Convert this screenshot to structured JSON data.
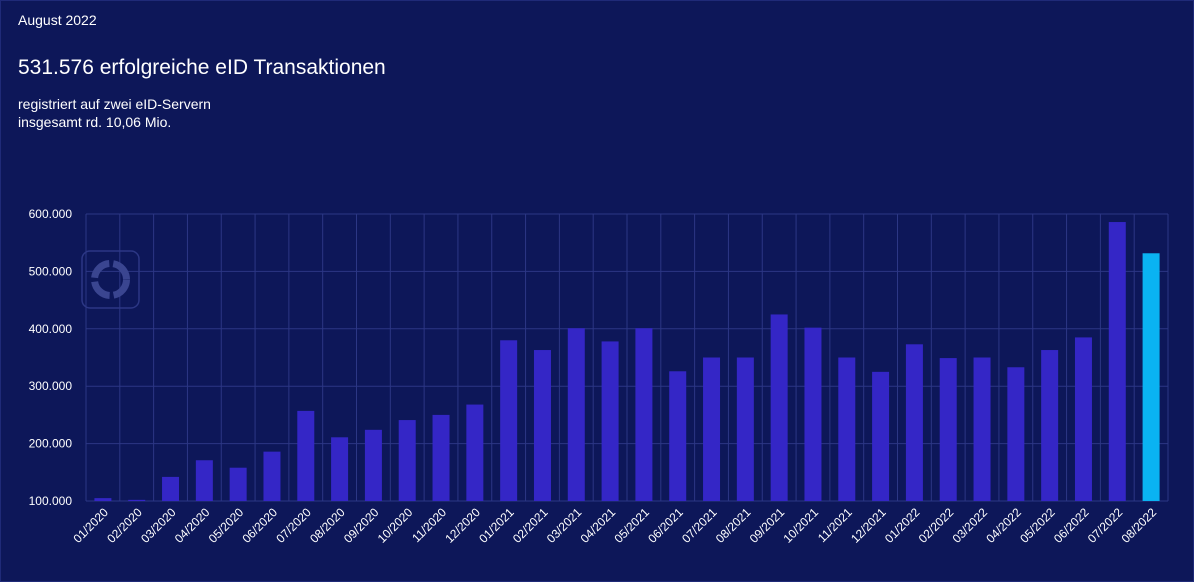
{
  "header": {
    "period": "August 2022",
    "headline": "531.576 erfolgreiche eID Transaktionen",
    "subline1": "registriert auf zwei eID-Servern",
    "subline2": "insgesamt rd. 10,06 Mio."
  },
  "colors": {
    "background": "#0d1759",
    "bar": "#3426c6",
    "bar_highlight": "#0ab3f2",
    "grid": "#2c3785"
  },
  "chart_data": {
    "type": "bar",
    "categories": [
      "01/2020",
      "02/2020",
      "03/2020",
      "04/2020",
      "05/2020",
      "06/2020",
      "07/2020",
      "08/2020",
      "09/2020",
      "10/2020",
      "11/2020",
      "12/2020",
      "01/2021",
      "02/2021",
      "03/2021",
      "04/2021",
      "05/2021",
      "06/2021",
      "07/2021",
      "08/2021",
      "09/2021",
      "10/2021",
      "11/2021",
      "12/2021",
      "01/2022",
      "02/2022",
      "03/2022",
      "04/2022",
      "05/2022",
      "06/2022",
      "07/2022",
      "08/2022"
    ],
    "values": [
      105000,
      102000,
      142000,
      171000,
      158000,
      186000,
      257000,
      211000,
      224000,
      241000,
      250000,
      268000,
      380000,
      363000,
      401000,
      378000,
      401000,
      326000,
      350000,
      350000,
      425000,
      402000,
      350000,
      325000,
      373000,
      349000,
      350000,
      333000,
      363000,
      385000,
      586000,
      531576
    ],
    "highlight_index": 31,
    "ylim": [
      100000,
      600000
    ],
    "yticks": [
      100000,
      200000,
      300000,
      400000,
      500000,
      600000
    ],
    "ytick_labels": [
      "100.000",
      "200.000",
      "300.000",
      "400.000",
      "500.000",
      "600.000"
    ],
    "grid": true,
    "legend": "none"
  }
}
